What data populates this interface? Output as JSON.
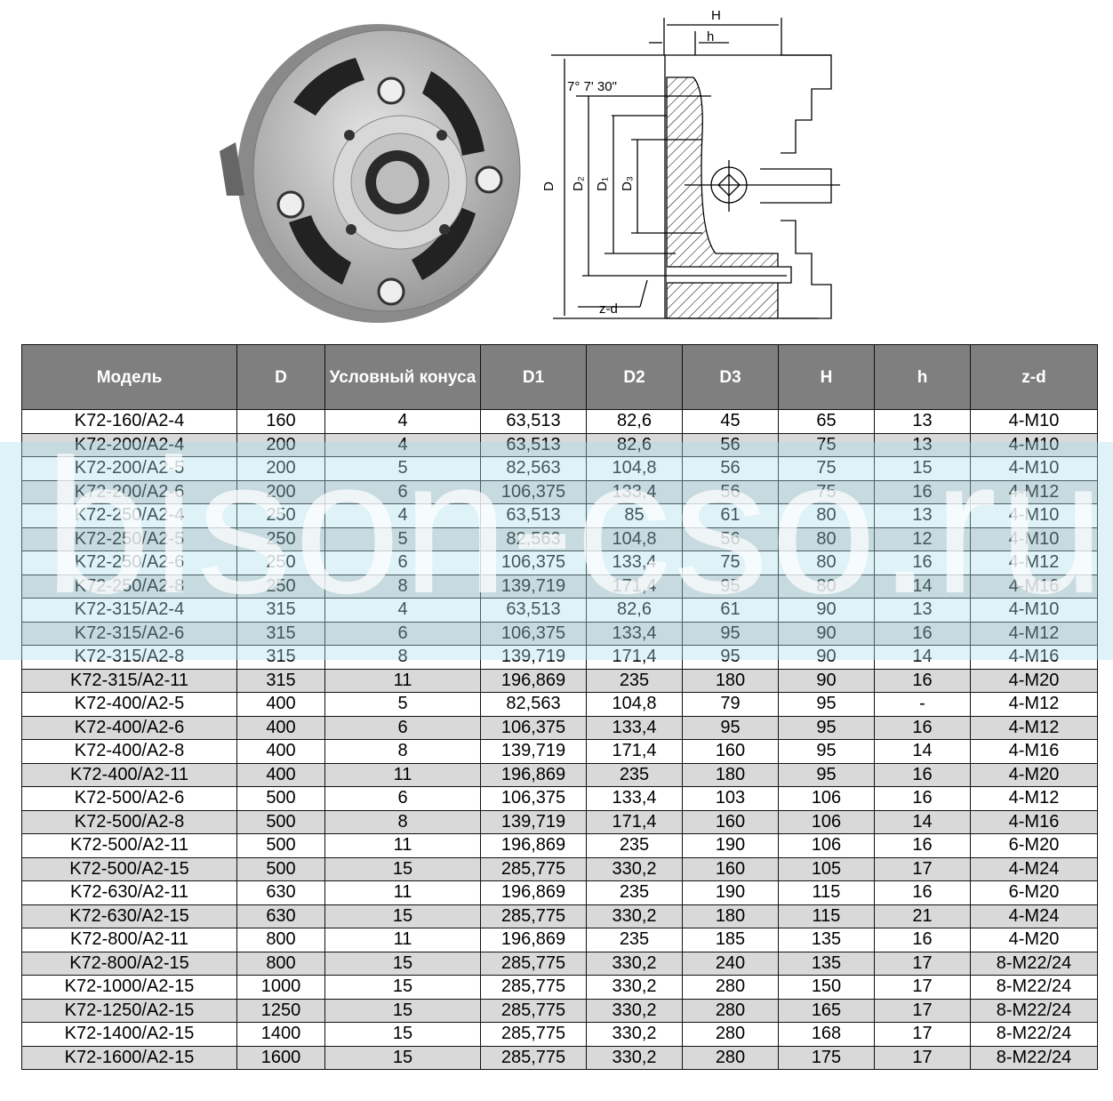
{
  "drawing": {
    "labels": {
      "H": "H",
      "h": "h",
      "D": "D",
      "D2": "D₂",
      "D1": "D₁",
      "D3": "D₃",
      "angle": "7° 7' 30\"",
      "zd": "z-d"
    }
  },
  "watermark": "bison-cso.ru",
  "table": {
    "headers": [
      "Модель",
      "D",
      "Условный конуса",
      "D1",
      "D2",
      "D3",
      "H",
      "h",
      "z-d"
    ],
    "rows": [
      [
        "K72-160/A2-4",
        "160",
        "4",
        "63,513",
        "82,6",
        "45",
        "65",
        "13",
        "4-M10"
      ],
      [
        "K72-200/A2-4",
        "200",
        "4",
        "63,513",
        "82,6",
        "56",
        "75",
        "13",
        "4-M10"
      ],
      [
        "K72-200/A2-5",
        "200",
        "5",
        "82,563",
        "104,8",
        "56",
        "75",
        "15",
        "4-M10"
      ],
      [
        "K72-200/A2-6",
        "200",
        "6",
        "106,375",
        "133,4",
        "56",
        "75",
        "16",
        "4-M12"
      ],
      [
        "K72-250/A2-4",
        "250",
        "4",
        "63,513",
        "85",
        "61",
        "80",
        "13",
        "4-M10"
      ],
      [
        "K72-250/A2-5",
        "250",
        "5",
        "82,563",
        "104,8",
        "56",
        "80",
        "12",
        "4-M10"
      ],
      [
        "K72-250/A2-6",
        "250",
        "6",
        "106,375",
        "133,4",
        "75",
        "80",
        "16",
        "4-M12"
      ],
      [
        "K72-250/A2-8",
        "250",
        "8",
        "139,719",
        "171,4",
        "95",
        "80",
        "14",
        "4-M16"
      ],
      [
        "K72-315/A2-4",
        "315",
        "4",
        "63,513",
        "82,6",
        "61",
        "90",
        "13",
        "4-M10"
      ],
      [
        "K72-315/A2-6",
        "315",
        "6",
        "106,375",
        "133,4",
        "95",
        "90",
        "16",
        "4-M12"
      ],
      [
        "K72-315/A2-8",
        "315",
        "8",
        "139,719",
        "171,4",
        "95",
        "90",
        "14",
        "4-M16"
      ],
      [
        "K72-315/A2-11",
        "315",
        "11",
        "196,869",
        "235",
        "180",
        "90",
        "16",
        "4-M20"
      ],
      [
        "K72-400/A2-5",
        "400",
        "5",
        "82,563",
        "104,8",
        "79",
        "95",
        "-",
        "4-M12"
      ],
      [
        "K72-400/A2-6",
        "400",
        "6",
        "106,375",
        "133,4",
        "95",
        "95",
        "16",
        "4-M12"
      ],
      [
        "K72-400/A2-8",
        "400",
        "8",
        "139,719",
        "171,4",
        "160",
        "95",
        "14",
        "4-M16"
      ],
      [
        "K72-400/A2-11",
        "400",
        "11",
        "196,869",
        "235",
        "180",
        "95",
        "16",
        "4-M20"
      ],
      [
        "K72-500/A2-6",
        "500",
        "6",
        "106,375",
        "133,4",
        "103",
        "106",
        "16",
        "4-M12"
      ],
      [
        "K72-500/A2-8",
        "500",
        "8",
        "139,719",
        "171,4",
        "160",
        "106",
        "14",
        "4-M16"
      ],
      [
        "K72-500/A2-11",
        "500",
        "11",
        "196,869",
        "235",
        "190",
        "106",
        "16",
        "6-M20"
      ],
      [
        "K72-500/A2-15",
        "500",
        "15",
        "285,775",
        "330,2",
        "160",
        "105",
        "17",
        "4-M24"
      ],
      [
        "K72-630/A2-11",
        "630",
        "11",
        "196,869",
        "235",
        "190",
        "115",
        "16",
        "6-M20"
      ],
      [
        "K72-630/A2-15",
        "630",
        "15",
        "285,775",
        "330,2",
        "180",
        "115",
        "21",
        "4-M24"
      ],
      [
        "K72-800/A2-11",
        "800",
        "11",
        "196,869",
        "235",
        "185",
        "135",
        "16",
        "4-M20"
      ],
      [
        "K72-800/A2-15",
        "800",
        "15",
        "285,775",
        "330,2",
        "240",
        "135",
        "17",
        "8-M22/24"
      ],
      [
        "K72-1000/A2-15",
        "1000",
        "15",
        "285,775",
        "330,2",
        "280",
        "150",
        "17",
        "8-M22/24"
      ],
      [
        "K72-1250/A2-15",
        "1250",
        "15",
        "285,775",
        "330,2",
        "280",
        "165",
        "17",
        "8-M22/24"
      ],
      [
        "K72-1400/A2-15",
        "1400",
        "15",
        "285,775",
        "330,2",
        "280",
        "168",
        "17",
        "8-M22/24"
      ],
      [
        "K72-1600/A2-15",
        "1600",
        "15",
        "285,775",
        "330,2",
        "280",
        "175",
        "17",
        "8-M22/24"
      ]
    ]
  }
}
